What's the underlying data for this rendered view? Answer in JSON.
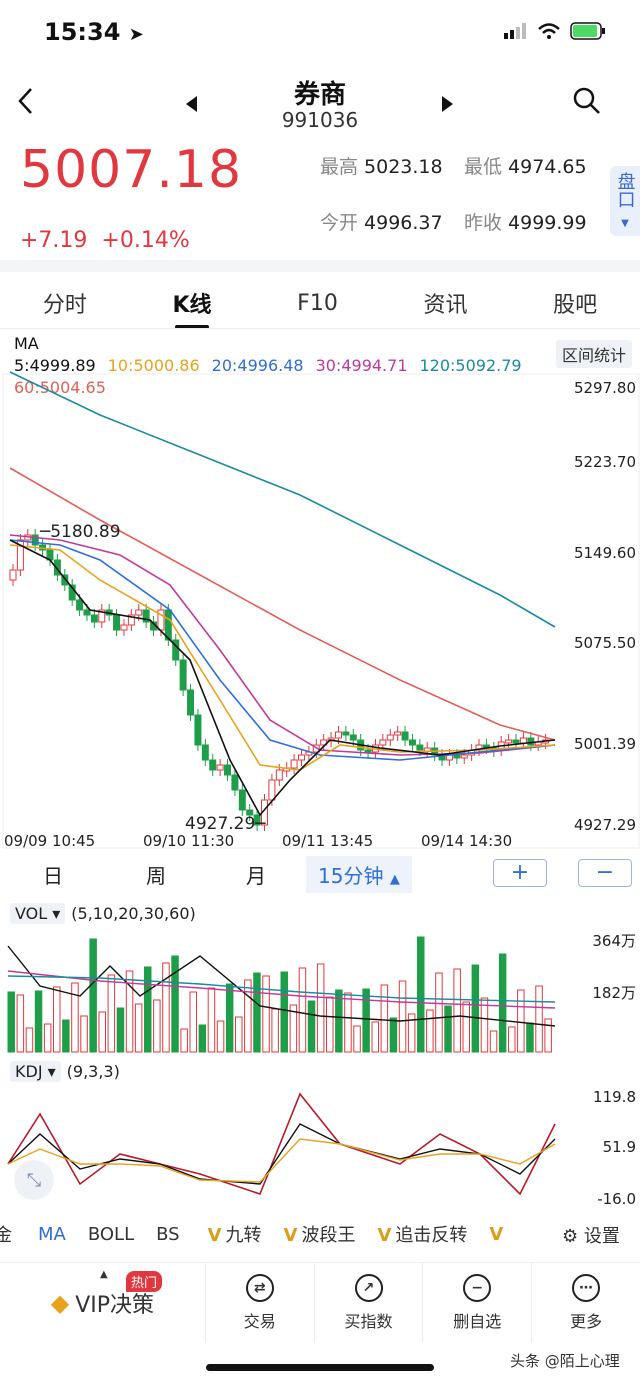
{
  "status": {
    "time": "15:34"
  },
  "header": {
    "title": "券商",
    "code": "991036"
  },
  "quote": {
    "price": "5007.18",
    "change": "+7.19",
    "change_pct": "+0.14%",
    "high_label": "最高",
    "high": "5023.18",
    "low_label": "最低",
    "low": "4974.65",
    "open_label": "今开",
    "open": "4996.37",
    "prev_label": "昨收",
    "prev": "4999.99",
    "pankou": "盘口"
  },
  "tabs": [
    "分时",
    "K线",
    "F10",
    "资讯",
    "股吧"
  ],
  "ma_legend": {
    "ma5": "MA 5:4999.89",
    "ma10": "10:5000.86",
    "ma20": "20:4996.48",
    "ma30": "30:4994.71",
    "ma120": "120:5092.79",
    "ma60": "60:5004.65",
    "range_stats": "区间统计"
  },
  "kline": {
    "y_ticks": [
      "5297.80",
      "5223.70",
      "5149.60",
      "5075.50",
      "5001.39",
      "4927.29"
    ],
    "x_ticks": [
      "09/09  10:45",
      "09/10  11:30",
      "09/11  13:45",
      "09/14  14:30"
    ],
    "high_mark": "5180.89",
    "low_mark": "4927.29"
  },
  "periods": [
    "日",
    "周",
    "月",
    "15分钟"
  ],
  "zoom": {
    "plus": "+",
    "minus": "−"
  },
  "vol": {
    "name": "VOL",
    "params": "(5,10,20,30,60)",
    "ticks": [
      "364万",
      "182万"
    ]
  },
  "kdj": {
    "name": "KDJ",
    "params": "(9,3,3)",
    "ticks": [
      "119.8",
      "51.9",
      "-16.0"
    ]
  },
  "indicator_bar": {
    "edge": "金",
    "items": [
      "MA",
      "BOLL",
      "BS",
      "九转",
      "波段王",
      "追击反转"
    ],
    "settings": "设置"
  },
  "bottom_nav": {
    "vip": "VIP决策",
    "hot": "热门",
    "items": [
      "交易",
      "买指数",
      "删自选",
      "更多"
    ]
  },
  "watermark": "头条 @陌上心理",
  "colors": {
    "up": "#e0383e",
    "down": "#1f9e4a",
    "ma5": "#111111",
    "ma10": "#e8a21b",
    "ma20": "#2f6fd6",
    "ma30": "#c0399b",
    "ma60": "#e0605a",
    "ma120": "#1a8aa0"
  }
}
